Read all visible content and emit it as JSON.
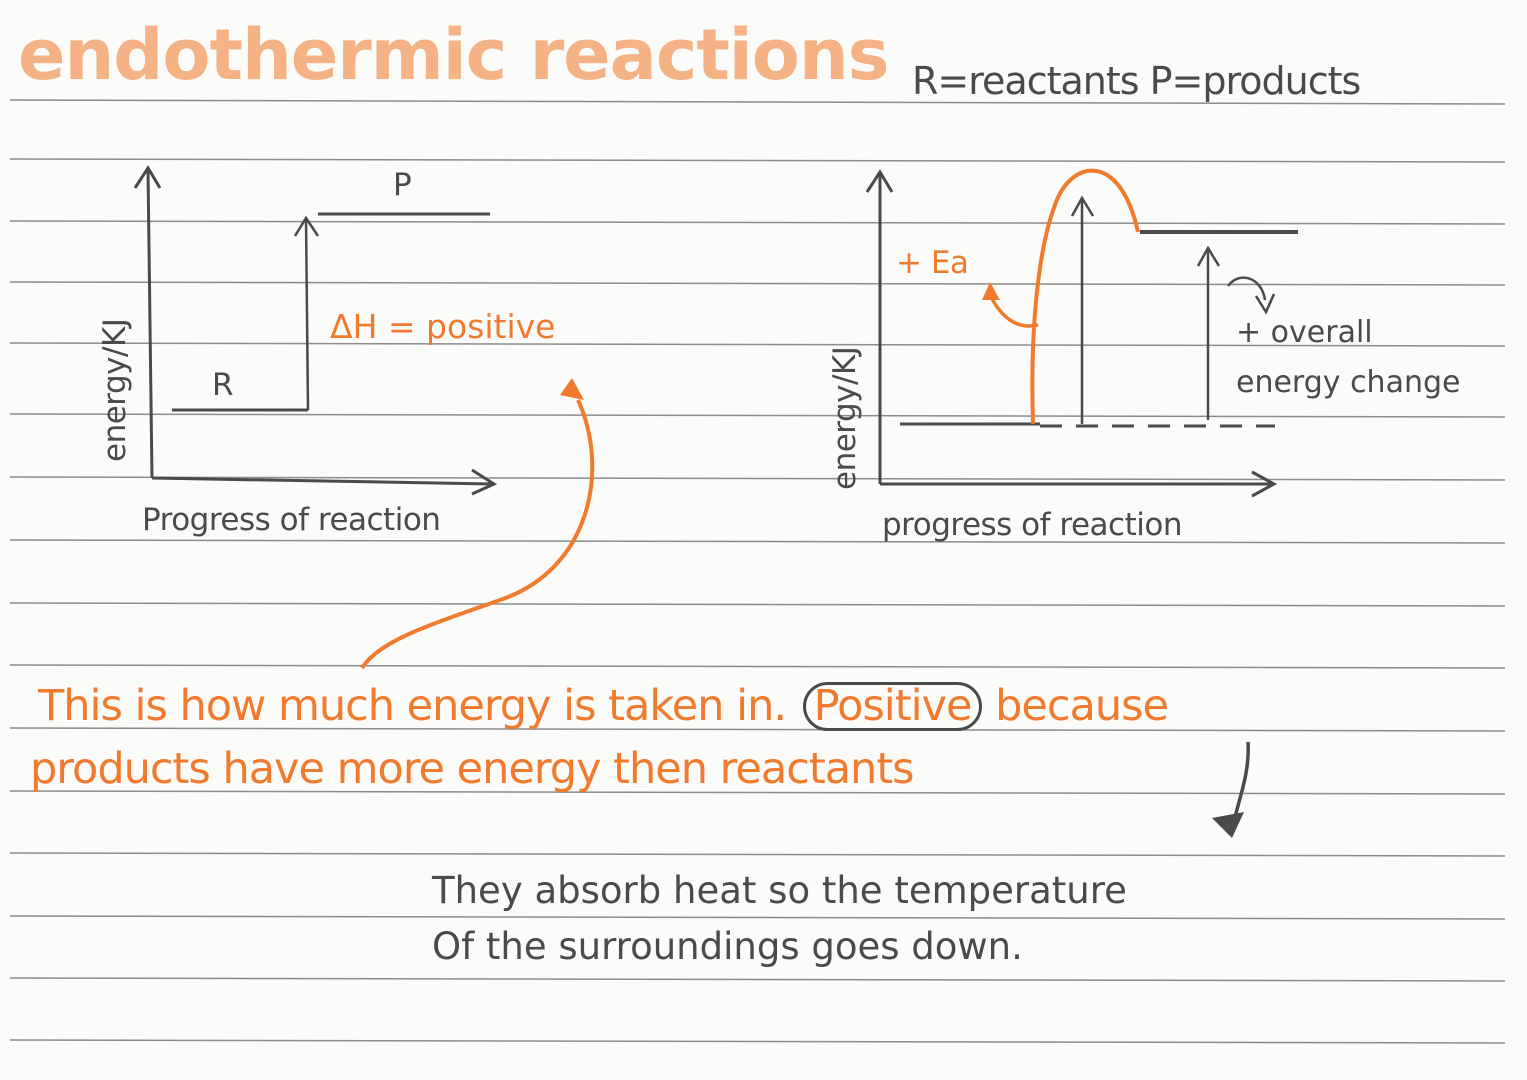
{
  "page": {
    "title": "endothermic reactions",
    "legend": "R=reactants  P=products"
  },
  "diagram_left": {
    "y_label": "energy/KJ",
    "x_label": "Progress of reaction",
    "reactant_label": "R",
    "product_label": "P",
    "delta_label": "ΔH = positive"
  },
  "diagram_right": {
    "y_label": "energy/KJ",
    "x_label": "progress of reaction",
    "ea_label": "+ Ea",
    "overall_label_line1": "+ overall",
    "overall_label_line2": "energy change"
  },
  "notes": {
    "orange_line1_a": "This is how much energy is taken in.",
    "orange_line1_b": "Positive",
    "orange_line1_c": "because",
    "orange_line2": "products have more energy then reactants",
    "grey_line1": "They absorb heat so the temperature",
    "grey_line2": "Of the surroundings goes down."
  },
  "colors": {
    "title": "#f5b285",
    "orange": "#f07a2e",
    "ink": "#4a4a4a",
    "rule": "#8c8c8c"
  }
}
